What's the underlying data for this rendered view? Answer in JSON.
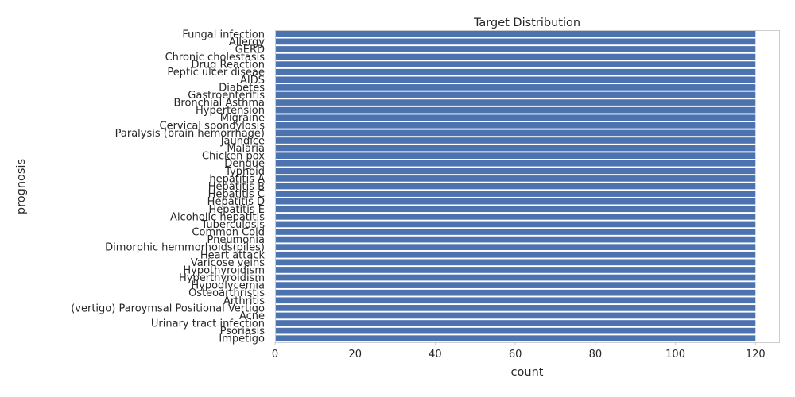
{
  "chart_data": {
    "type": "bar",
    "orientation": "horizontal",
    "title": "Target Distribution",
    "xlabel": "count",
    "ylabel": "prognosis",
    "xlim": [
      0,
      125.9
    ],
    "xticks": [
      0,
      20,
      40,
      60,
      80,
      100,
      120
    ],
    "grid": false,
    "bar_color": "#4c72b0",
    "categories": [
      "Fungal infection",
      "Allergy",
      "GERD",
      "Chronic cholestasis",
      "Drug Reaction",
      "Peptic ulcer diseae",
      "AIDS",
      "Diabetes ",
      "Gastroenteritis",
      "Bronchial Asthma",
      "Hypertension ",
      "Migraine",
      "Cervical spondylosis",
      "Paralysis (brain hemorrhage)",
      "Jaundice",
      "Malaria",
      "Chicken pox",
      "Dengue",
      "Typhoid",
      "hepatitis A",
      "Hepatitis B",
      "Hepatitis C",
      "Hepatitis D",
      "Hepatitis E",
      "Alcoholic hepatitis",
      "Tuberculosis",
      "Common Cold",
      "Pneumonia",
      "Dimorphic hemmorhoids(piles)",
      "Heart attack",
      "Varicose veins",
      "Hypothyroidism",
      "Hyperthyroidism",
      "Hypoglycemia",
      "Osteoarthristis",
      "Arthritis",
      "(vertigo) Paroymsal  Positional Vertigo",
      "Acne",
      "Urinary tract infection",
      "Psoriasis",
      "Impetigo"
    ],
    "values": [
      120,
      120,
      120,
      120,
      120,
      120,
      120,
      120,
      120,
      120,
      120,
      120,
      120,
      120,
      120,
      120,
      120,
      120,
      120,
      120,
      120,
      120,
      120,
      120,
      120,
      120,
      120,
      120,
      120,
      120,
      120,
      120,
      120,
      120,
      120,
      120,
      120,
      120,
      120,
      120,
      120
    ]
  }
}
